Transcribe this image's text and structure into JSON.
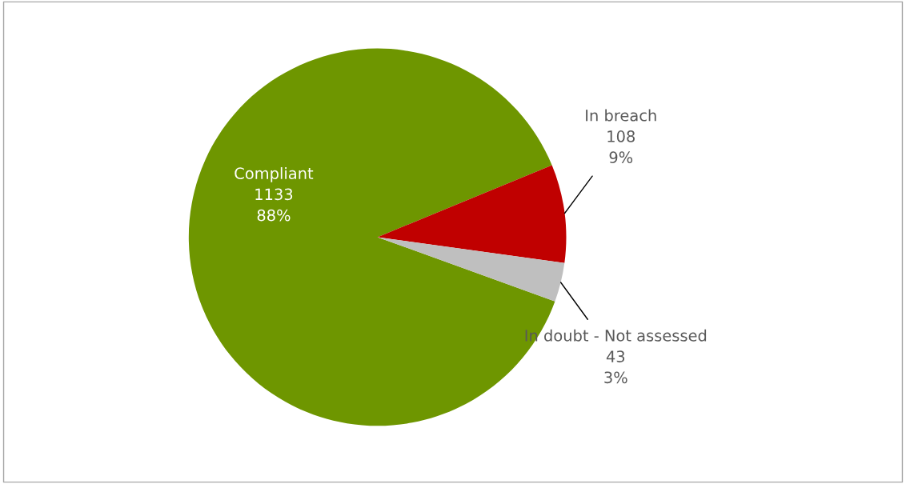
{
  "chart_data": {
    "type": "pie",
    "categories": [
      "Compliant",
      "In breach",
      "In doubt - Not assessed"
    ],
    "values": [
      1133,
      108,
      43
    ],
    "value_labels": [
      "1133\n88%",
      "108\n9%",
      "43\n3%"
    ],
    "colors": [
      "#6e9600",
      "#c00000",
      "#bfbfbf"
    ]
  }
}
